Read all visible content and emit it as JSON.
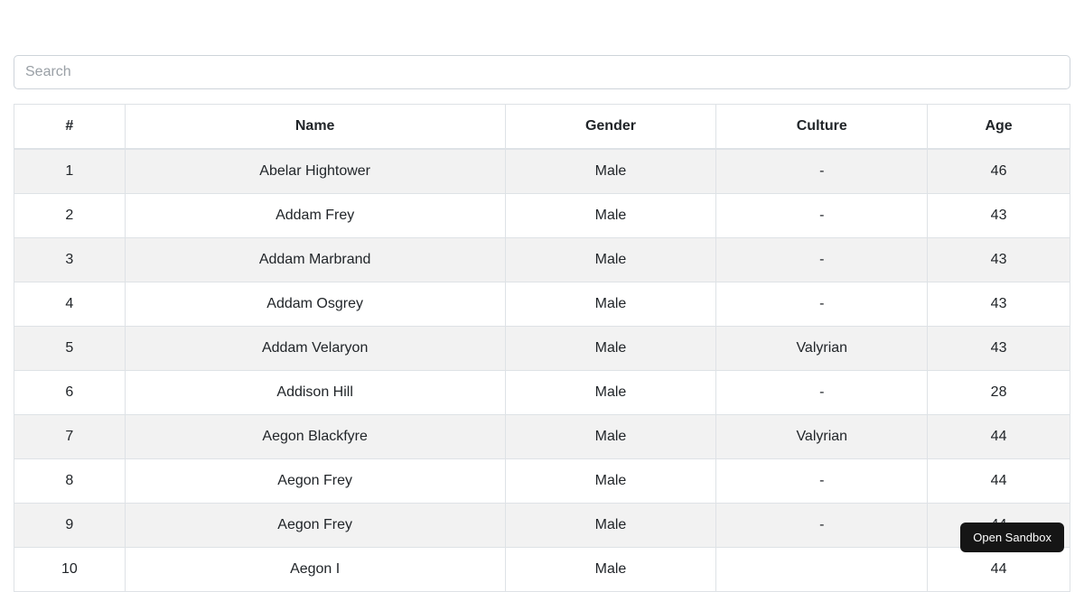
{
  "search": {
    "placeholder": "Search",
    "value": ""
  },
  "table": {
    "columns": [
      "#",
      "Name",
      "Gender",
      "Culture",
      "Age"
    ],
    "rows": [
      {
        "num": "1",
        "name": "Abelar Hightower",
        "gender": "Male",
        "culture": "-",
        "age": "46"
      },
      {
        "num": "2",
        "name": "Addam Frey",
        "gender": "Male",
        "culture": "-",
        "age": "43"
      },
      {
        "num": "3",
        "name": "Addam Marbrand",
        "gender": "Male",
        "culture": "-",
        "age": "43"
      },
      {
        "num": "4",
        "name": "Addam Osgrey",
        "gender": "Male",
        "culture": "-",
        "age": "43"
      },
      {
        "num": "5",
        "name": "Addam Velaryon",
        "gender": "Male",
        "culture": "Valyrian",
        "age": "43"
      },
      {
        "num": "6",
        "name": "Addison Hill",
        "gender": "Male",
        "culture": "-",
        "age": "28"
      },
      {
        "num": "7",
        "name": "Aegon Blackfyre",
        "gender": "Male",
        "culture": "Valyrian",
        "age": "44"
      },
      {
        "num": "8",
        "name": "Aegon Frey",
        "gender": "Male",
        "culture": "-",
        "age": "44"
      },
      {
        "num": "9",
        "name": "Aegon Frey",
        "gender": "Male",
        "culture": "-",
        "age": "44"
      },
      {
        "num": "10",
        "name": "Aegon I",
        "gender": "Male",
        "culture": "",
        "age": "44"
      }
    ]
  },
  "sandbox_button": {
    "label": "Open Sandbox"
  },
  "colors": {
    "stripe": "#f2f2f2",
    "table_border": "#dee2e6",
    "text": "#212529",
    "input_border": "#ced4da",
    "button_background": "#151515",
    "button_text": "#ffffff"
  }
}
